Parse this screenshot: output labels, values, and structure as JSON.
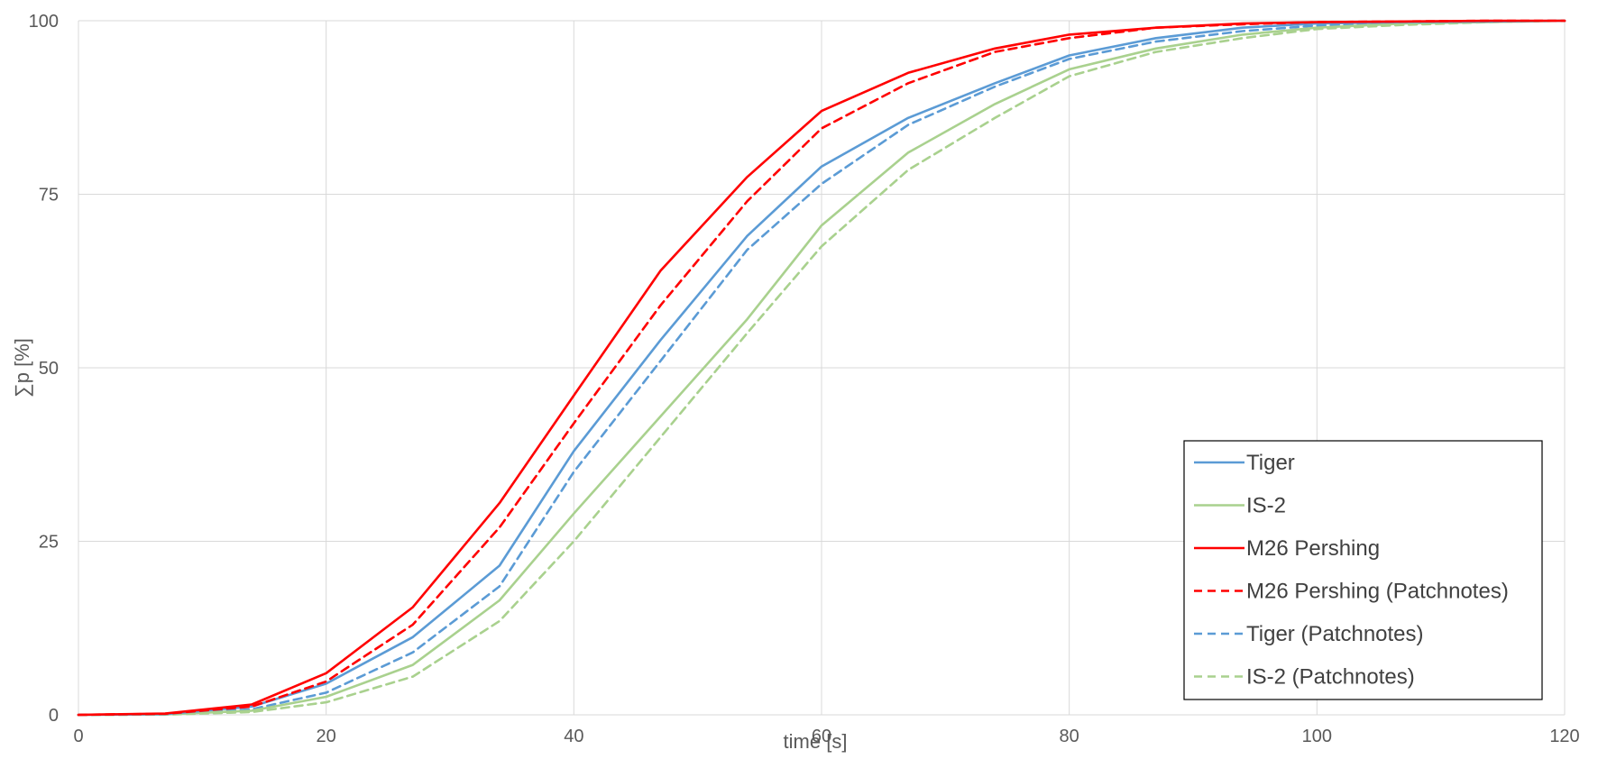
{
  "chart_data": {
    "type": "line",
    "xlabel": "time [s]",
    "ylabel": "∑p [%]",
    "xlim": [
      0,
      120
    ],
    "ylim": [
      0,
      100
    ],
    "xticks": [
      "0",
      "20",
      "40",
      "60",
      "80",
      "100",
      "120"
    ],
    "yticks": [
      "0",
      "25",
      "50",
      "75",
      "100"
    ],
    "grid": true,
    "legend_position": "bottom-right",
    "series": [
      {
        "name": "Tiger",
        "color": "#5b9bd5",
        "dash": "solid",
        "x": [
          0,
          7,
          14,
          20,
          27,
          34,
          40,
          47,
          54,
          60,
          67,
          74,
          80,
          87,
          94,
          100,
          107,
          114,
          120
        ],
        "y": [
          0,
          0.1,
          1.2,
          4.5,
          11.2,
          21.5,
          38,
          54,
          69,
          79,
          86,
          91,
          95,
          97.5,
          99,
          99.6,
          99.8,
          99.9,
          100
        ]
      },
      {
        "name": "IS-2",
        "color": "#a9d18e",
        "dash": "solid",
        "x": [
          0,
          7,
          14,
          20,
          27,
          34,
          40,
          47,
          54,
          60,
          67,
          74,
          80,
          87,
          94,
          100,
          107,
          114,
          120
        ],
        "y": [
          0,
          0.05,
          0.6,
          2.6,
          7.2,
          16.5,
          29,
          43,
          57,
          70.5,
          81,
          88,
          93,
          96,
          98,
          99,
          99.6,
          99.8,
          100
        ]
      },
      {
        "name": "M26 Pershing",
        "color": "#ff0000",
        "dash": "solid",
        "x": [
          0,
          7,
          14,
          20,
          27,
          34,
          40,
          47,
          54,
          60,
          67,
          74,
          80,
          87,
          94,
          100,
          107,
          114,
          120
        ],
        "y": [
          0,
          0.2,
          1.5,
          6,
          15.5,
          30.5,
          46,
          64,
          77.5,
          87,
          92.5,
          96,
          98,
          99,
          99.6,
          99.8,
          99.9,
          100,
          100
        ]
      },
      {
        "name": "M26 Pershing (Patchnotes)",
        "color": "#ff0000",
        "dash": "dashed",
        "x": [
          0,
          7,
          14,
          20,
          27,
          34,
          40,
          47,
          54,
          60,
          67,
          74,
          80,
          87,
          94,
          100,
          107,
          114,
          120
        ],
        "y": [
          0,
          0.15,
          1.2,
          4.8,
          13,
          27,
          42,
          59,
          74,
          84.5,
          91,
          95.5,
          97.5,
          99,
          99.5,
          99.8,
          99.9,
          100,
          100
        ]
      },
      {
        "name": "Tiger (Patchnotes)",
        "color": "#5b9bd5",
        "dash": "dashed",
        "x": [
          0,
          7,
          14,
          20,
          27,
          34,
          40,
          47,
          54,
          60,
          67,
          74,
          80,
          87,
          94,
          100,
          107,
          114,
          120
        ],
        "y": [
          0,
          0.05,
          0.8,
          3.2,
          9,
          18.5,
          35,
          51,
          67,
          76.5,
          85,
          90.5,
          94.5,
          97,
          98.5,
          99.3,
          99.7,
          99.9,
          100
        ]
      },
      {
        "name": "IS-2 (Patchnotes)",
        "color": "#a9d18e",
        "dash": "dashed",
        "x": [
          0,
          7,
          14,
          20,
          27,
          34,
          40,
          47,
          54,
          60,
          67,
          74,
          80,
          87,
          94,
          100,
          107,
          114,
          120
        ],
        "y": [
          0,
          0.03,
          0.4,
          1.8,
          5.5,
          13.5,
          25,
          40,
          55,
          67.5,
          78.5,
          86,
          92,
          95.5,
          97.5,
          98.8,
          99.4,
          99.8,
          100
        ]
      }
    ]
  }
}
